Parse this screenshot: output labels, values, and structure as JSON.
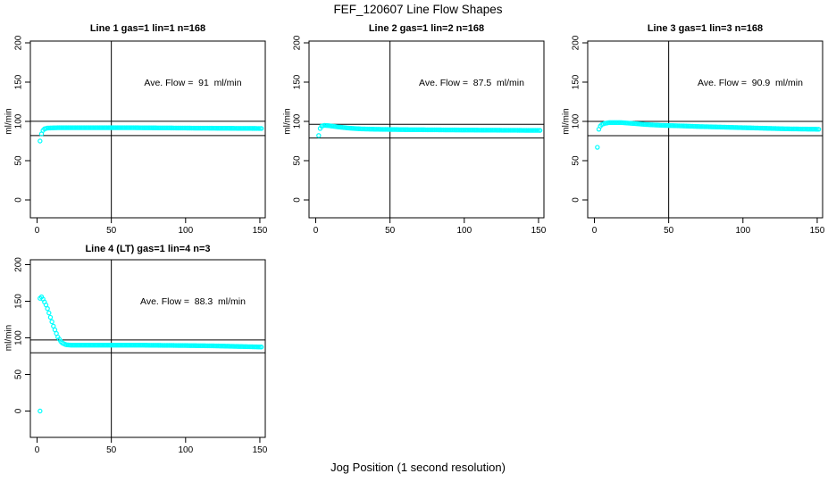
{
  "page": {
    "title": "FEF_120607  Line Flow Shapes",
    "xlabel": "Jog Position (1 second resolution)",
    "colors": {
      "marker": "#00ffff",
      "axis": "#000000",
      "text": "#000000",
      "background": "#ffffff"
    }
  },
  "chart_data": [
    {
      "type": "scatter",
      "title": "Line 1 gas=1 lin=1 n=168",
      "annotation": "Ave. Flow =  91  ml/min",
      "ave_flow_ml_min": 91,
      "ylabel": "ml/min",
      "xticks": [
        0,
        50,
        100,
        150
      ],
      "yticks": [
        0,
        50,
        100,
        150,
        200
      ],
      "xlim": [
        -5,
        154
      ],
      "ylim": [
        -23,
        205
      ],
      "vline_x": 50,
      "hlines": [
        100.1,
        81.9
      ],
      "x_step": 1,
      "outliers": [
        [
          2,
          75
        ]
      ],
      "curve_keypoints": [
        [
          3,
          84
        ],
        [
          4,
          88.5
        ],
        [
          5,
          90.5
        ],
        [
          7,
          91.5
        ],
        [
          15,
          92
        ],
        [
          60,
          92
        ],
        [
          100,
          91.5
        ],
        [
          151,
          91
        ]
      ]
    },
    {
      "type": "scatter",
      "title": "Line 2 gas=1 lin=2 n=168",
      "annotation": "Ave. Flow =  87.5  ml/min",
      "ave_flow_ml_min": 87.5,
      "ylabel": "ml/min",
      "xticks": [
        0,
        50,
        100,
        150
      ],
      "yticks": [
        0,
        50,
        100,
        150,
        200
      ],
      "xlim": [
        -5,
        154
      ],
      "ylim": [
        -23,
        205
      ],
      "vline_x": 50,
      "hlines": [
        96.3,
        78.8
      ],
      "x_step": 1,
      "outliers": [],
      "curve_keypoints": [
        [
          2,
          82
        ],
        [
          3,
          91
        ],
        [
          4,
          94
        ],
        [
          6,
          95
        ],
        [
          9,
          94.5
        ],
        [
          15,
          93
        ],
        [
          22,
          91.5
        ],
        [
          30,
          90.5
        ],
        [
          40,
          90
        ],
        [
          60,
          89.5
        ],
        [
          100,
          89
        ],
        [
          151,
          88.5
        ]
      ]
    },
    {
      "type": "scatter",
      "title": "Line 3 gas=1 lin=3 n=168",
      "annotation": "Ave. Flow =  90.9  ml/min",
      "ave_flow_ml_min": 90.9,
      "ylabel": "ml/min",
      "xticks": [
        0,
        50,
        100,
        150
      ],
      "yticks": [
        0,
        50,
        100,
        150,
        200
      ],
      "xlim": [
        -5,
        154
      ],
      "ylim": [
        -23,
        205
      ],
      "vline_x": 50,
      "hlines": [
        100.0,
        81.8
      ],
      "x_step": 1,
      "outliers": [
        [
          2,
          67
        ]
      ],
      "curve_keypoints": [
        [
          3,
          90
        ],
        [
          4,
          94
        ],
        [
          5,
          96
        ],
        [
          7,
          97.5
        ],
        [
          10,
          98.5
        ],
        [
          18,
          98.5
        ],
        [
          25,
          97.5
        ],
        [
          35,
          96
        ],
        [
          45,
          95
        ],
        [
          55,
          94.5
        ],
        [
          70,
          93.5
        ],
        [
          90,
          92.5
        ],
        [
          110,
          91.5
        ],
        [
          130,
          90.5
        ],
        [
          151,
          90
        ]
      ]
    },
    {
      "type": "scatter",
      "title": "Line 4 (LT) gas=1 lin=4 n=3",
      "annotation": "Ave. Flow =  88.3  ml/min",
      "ave_flow_ml_min": 88.3,
      "ylabel": "ml/min",
      "xticks": [
        0,
        50,
        100,
        150
      ],
      "yticks": [
        0,
        50,
        100,
        150,
        200
      ],
      "xlim": [
        -5,
        154
      ],
      "ylim": [
        -36,
        207
      ],
      "vline_x": 50,
      "hlines": [
        97.1,
        79.5
      ],
      "x_step": 1,
      "outliers": [
        [
          2,
          0
        ]
      ],
      "curve_keypoints": [
        [
          2,
          154
        ],
        [
          3,
          156
        ],
        [
          4,
          153
        ],
        [
          5,
          149
        ],
        [
          6,
          145
        ],
        [
          7,
          140
        ],
        [
          8,
          134
        ],
        [
          9,
          128
        ],
        [
          10,
          122
        ],
        [
          11,
          116
        ],
        [
          12,
          111
        ],
        [
          13,
          106
        ],
        [
          14,
          101
        ],
        [
          15,
          98
        ],
        [
          16,
          95
        ],
        [
          17,
          93
        ],
        [
          18,
          92
        ],
        [
          19,
          91
        ],
        [
          20,
          90.5
        ],
        [
          23,
          90
        ],
        [
          40,
          90
        ],
        [
          70,
          90
        ],
        [
          100,
          89.5
        ],
        [
          120,
          89
        ],
        [
          151,
          87.5
        ]
      ]
    }
  ]
}
